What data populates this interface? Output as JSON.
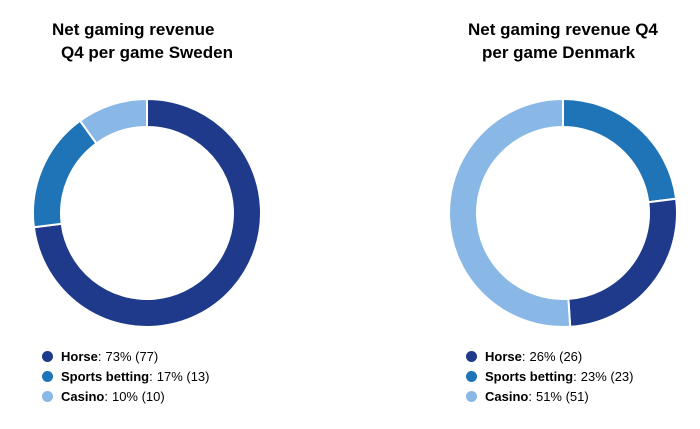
{
  "chart_data": [
    {
      "type": "pie",
      "title_lines": [
        "Net gaming revenue",
        "Q4 per game Sweden"
      ],
      "series": [
        {
          "name": "Horse",
          "value": 73,
          "label": "73% (77)",
          "color": "#1f3a8a"
        },
        {
          "name": "Sports betting",
          "value": 17,
          "label": "17% (13)",
          "color": "#1f73b7"
        },
        {
          "name": "Casino",
          "value": 10,
          "label": "10% (10)",
          "color": "#8ab8e6"
        }
      ],
      "legend": "bottom-left"
    },
    {
      "type": "pie",
      "title_lines": [
        "Net gaming revenue Q4",
        "per game Denmark"
      ],
      "series": [
        {
          "name": "Horse",
          "value": 26,
          "label": "26% (26)",
          "color": "#1f3a8a"
        },
        {
          "name": "Sports betting",
          "value": 23,
          "label": "23% (23)",
          "color": "#1f73b7"
        },
        {
          "name": "Casino",
          "value": 51,
          "label": "51% (51)",
          "color": "#8ab8e6"
        }
      ],
      "legend": "bottom-left"
    }
  ]
}
